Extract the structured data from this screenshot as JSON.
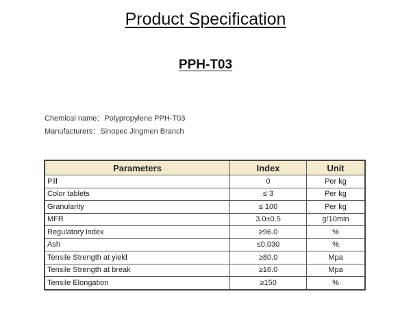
{
  "title": "Product Specification",
  "product": "PPH-T03",
  "chemical_name": "Chemical name：Polypropylene PPH-T03",
  "manufacturers": "Manufacturers：Sinopec Jingmen Branch",
  "table": {
    "headers": [
      "Parameters",
      "Index",
      "Unit"
    ],
    "rows": [
      [
        "Pill",
        "0",
        "Per kg"
      ],
      [
        "Color tablets",
        "≤ 3",
        "Per kg"
      ],
      [
        "Granularity",
        "≤ 100",
        "Per kg"
      ],
      [
        "MFR",
        "3.0±0.5",
        "g/10min"
      ],
      [
        "Regulatory index",
        "≥96.0",
        "%"
      ],
      [
        "Ash",
        "≤0.030",
        "%"
      ],
      [
        "Tensile Strength at yield",
        "≥80.0",
        "Mpa"
      ],
      [
        "Tensile Strength at break",
        "≥16.0",
        "Mpa"
      ],
      [
        "Tensile Elongation",
        "≥150",
        "%"
      ]
    ]
  },
  "colors": {
    "header_bg": "#f3e9cd"
  }
}
